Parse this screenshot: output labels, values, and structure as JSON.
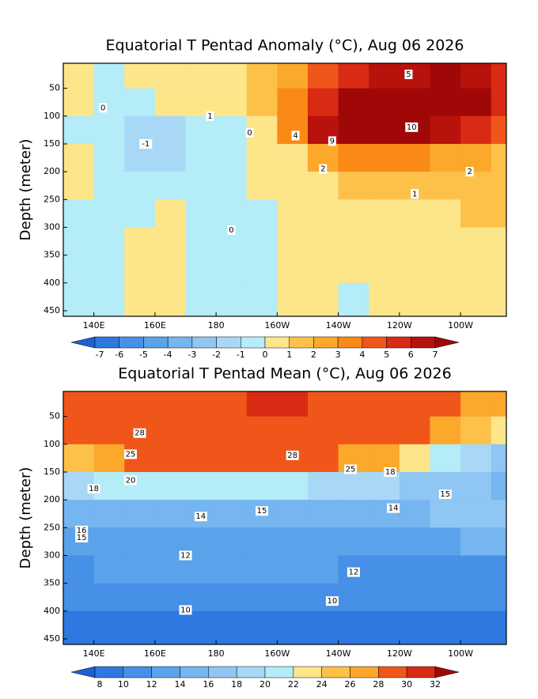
{
  "chart_data": [
    {
      "type": "heatmap",
      "title": "Equatorial T Pentad Anomaly (°C), Aug 06 2026",
      "ylabel": "Depth (meter)",
      "xlim": [
        130,
        275
      ],
      "ylim": [
        5,
        460
      ],
      "xticks": [
        {
          "value": 140,
          "label": "140E"
        },
        {
          "value": 160,
          "label": "160E"
        },
        {
          "value": 180,
          "label": "180"
        },
        {
          "value": 200,
          "label": "160W"
        },
        {
          "value": 220,
          "label": "140W"
        },
        {
          "value": 240,
          "label": "120W"
        },
        {
          "value": 260,
          "label": "100W"
        }
      ],
      "yticks": [
        50,
        100,
        150,
        200,
        250,
        300,
        350,
        400,
        450
      ],
      "x_edges": [
        130,
        140,
        150,
        160,
        170,
        180,
        190,
        200,
        210,
        220,
        230,
        240,
        250,
        260,
        270,
        275
      ],
      "y_edges": [
        5,
        50,
        100,
        150,
        200,
        250,
        300,
        350,
        400,
        450,
        460
      ],
      "z": [
        [
          0.5,
          -0.5,
          0.5,
          0.5,
          0.5,
          0.8,
          1.5,
          2.5,
          4,
          5,
          6,
          6.5,
          7,
          6.5,
          5
        ],
        [
          0.5,
          -0.5,
          -0.5,
          0.5,
          0.5,
          0.8,
          1.5,
          3,
          5,
          7,
          7.5,
          8,
          8,
          7,
          5
        ],
        [
          -0.5,
          -0.5,
          -1.5,
          -1.2,
          -0.5,
          -0.5,
          0.5,
          3,
          6,
          8,
          8,
          7,
          6,
          5,
          4
        ],
        [
          0.5,
          -0.5,
          -1.5,
          -1.5,
          -0.5,
          -0.5,
          0.5,
          0.8,
          2,
          3,
          3,
          3,
          2.5,
          2,
          1.5
        ],
        [
          0.5,
          -0.5,
          -0.5,
          -0.5,
          -0.5,
          -0.5,
          0.5,
          0.5,
          0.8,
          1,
          1,
          1.2,
          1,
          1.5,
          1.5
        ],
        [
          -0.5,
          -0.5,
          -0.5,
          0.5,
          -0.5,
          -0.5,
          -0.5,
          0.5,
          0.5,
          0.5,
          0.5,
          0.8,
          0.8,
          1,
          1.2
        ],
        [
          -0.5,
          -0.5,
          0.5,
          0.5,
          -0.5,
          -0.5,
          -0.5,
          0.5,
          0.5,
          0.5,
          0.5,
          0.5,
          0.5,
          0.5,
          0.8
        ],
        [
          -0.5,
          -0.5,
          0.5,
          0.5,
          -0.5,
          -0.5,
          -0.5,
          0.5,
          0.5,
          0.5,
          0.5,
          0.5,
          0.5,
          0.5,
          0.5
        ],
        [
          -0.5,
          -0.5,
          0.5,
          0.5,
          -0.5,
          -0.5,
          -0.5,
          0.5,
          0.5,
          -0.5,
          0.5,
          0.5,
          0.5,
          0.5,
          0.5
        ],
        [
          -0.5,
          -0.5,
          0.5,
          0.5,
          -0.5,
          -0.5,
          -0.5,
          0.5,
          0.5,
          -0.5,
          0.5,
          0.5,
          0.5,
          0.5,
          0.5
        ]
      ],
      "colorbar": {
        "levels": [
          -7,
          -6,
          -5,
          -4,
          -3,
          -2,
          -1,
          0,
          1,
          2,
          3,
          4,
          5,
          6,
          7
        ],
        "colors": [
          "#1d5fd6",
          "#2e78e0",
          "#4690e8",
          "#5aa2ea",
          "#75b5f0",
          "#8fc6f3",
          "#a9d8f6",
          "#b4ecf7",
          "#fde58a",
          "#fdc14a",
          "#fba82b",
          "#f98a16",
          "#f0561a",
          "#d92a13",
          "#b8120c",
          "#a00808"
        ]
      },
      "annotations": [
        {
          "x": 143,
          "y": 85,
          "text": "0"
        },
        {
          "x": 157,
          "y": 150,
          "text": "-1"
        },
        {
          "x": 178,
          "y": 100,
          "text": "1"
        },
        {
          "x": 191,
          "y": 130,
          "text": "0"
        },
        {
          "x": 185,
          "y": 305,
          "text": "0"
        },
        {
          "x": 206,
          "y": 135,
          "text": "4"
        },
        {
          "x": 218,
          "y": 145,
          "text": "9"
        },
        {
          "x": 244,
          "y": 120,
          "text": "10"
        },
        {
          "x": 243,
          "y": 25,
          "text": "5"
        },
        {
          "x": 263,
          "y": 200,
          "text": "2"
        },
        {
          "x": 245,
          "y": 240,
          "text": "1"
        },
        {
          "x": 215,
          "y": 195,
          "text": "2"
        }
      ]
    },
    {
      "type": "heatmap",
      "title": "Equatorial T Pentad Mean (°C), Aug 06 2026",
      "ylabel": "Depth (meter)",
      "xlim": [
        130,
        275
      ],
      "ylim": [
        5,
        460
      ],
      "xticks": [
        {
          "value": 140,
          "label": "140E"
        },
        {
          "value": 160,
          "label": "160E"
        },
        {
          "value": 180,
          "label": "180"
        },
        {
          "value": 200,
          "label": "160W"
        },
        {
          "value": 220,
          "label": "140W"
        },
        {
          "value": 240,
          "label": "120W"
        },
        {
          "value": 260,
          "label": "100W"
        }
      ],
      "yticks": [
        50,
        100,
        150,
        200,
        250,
        300,
        350,
        400,
        450
      ],
      "x_edges": [
        130,
        140,
        150,
        160,
        170,
        180,
        190,
        200,
        210,
        220,
        230,
        240,
        250,
        260,
        270,
        275
      ],
      "y_edges": [
        5,
        50,
        100,
        150,
        200,
        250,
        300,
        350,
        400,
        450,
        460
      ],
      "z": [
        [
          29,
          29,
          29,
          29,
          29,
          29,
          30.5,
          30.5,
          29,
          29,
          29,
          29,
          28.5,
          27,
          26
        ],
        [
          29,
          29,
          29,
          29,
          29,
          29,
          29,
          29,
          29,
          29,
          29,
          28.5,
          27,
          25,
          22
        ],
        [
          25,
          27,
          28,
          28,
          28,
          28,
          28,
          28,
          28,
          27,
          26,
          23,
          20,
          18,
          17
        ],
        [
          18,
          20,
          21,
          21,
          21,
          21,
          20,
          20,
          19,
          18,
          18,
          17,
          16.5,
          16,
          15
        ],
        [
          15.5,
          15,
          14.5,
          14.5,
          14.5,
          14.5,
          14.5,
          14.5,
          14.5,
          14.5,
          15,
          15.5,
          16,
          16.5,
          16.5
        ],
        [
          13,
          13,
          13,
          13,
          13,
          13,
          13,
          13,
          13,
          13,
          13,
          13,
          13.5,
          14,
          15
        ],
        [
          11.5,
          12,
          12,
          12.5,
          12.5,
          12,
          12,
          12,
          12,
          11.5,
          11.5,
          11.5,
          11,
          11,
          11
        ],
        [
          10.5,
          10.5,
          11,
          11,
          11,
          10.5,
          10.5,
          10.5,
          10.5,
          10.5,
          10.5,
          10,
          10,
          10,
          10
        ],
        [
          9.5,
          9.5,
          9.5,
          9.5,
          9.5,
          9.5,
          9.5,
          9.5,
          9.5,
          9.5,
          9.5,
          9.5,
          9.5,
          9.5,
          9.5
        ],
        [
          9,
          9,
          9,
          9,
          9,
          9,
          9,
          9,
          9,
          9,
          9,
          9,
          9,
          9,
          9
        ]
      ],
      "colorbar": {
        "levels": [
          8,
          10,
          12,
          14,
          16,
          18,
          20,
          22,
          24,
          26,
          28,
          30,
          32
        ],
        "colors": [
          "#1d5fd6",
          "#2e78e0",
          "#4690e8",
          "#5aa2ea",
          "#75b5f0",
          "#8fc6f3",
          "#a9d8f6",
          "#b4ecf7",
          "#fde58a",
          "#fdc14a",
          "#fba82b",
          "#f0561a",
          "#d92a13",
          "#a00808"
        ]
      },
      "annotations": [
        {
          "x": 155,
          "y": 80,
          "text": "28"
        },
        {
          "x": 152,
          "y": 118,
          "text": "25"
        },
        {
          "x": 152,
          "y": 165,
          "text": "20"
        },
        {
          "x": 140,
          "y": 180,
          "text": "18"
        },
        {
          "x": 136,
          "y": 255,
          "text": "16"
        },
        {
          "x": 136,
          "y": 268,
          "text": "15"
        },
        {
          "x": 175,
          "y": 230,
          "text": "14"
        },
        {
          "x": 170,
          "y": 300,
          "text": "12"
        },
        {
          "x": 170,
          "y": 398,
          "text": "10"
        },
        {
          "x": 205,
          "y": 120,
          "text": "28"
        },
        {
          "x": 224,
          "y": 145,
          "text": "25"
        },
        {
          "x": 195,
          "y": 220,
          "text": "15"
        },
        {
          "x": 237,
          "y": 150,
          "text": "18"
        },
        {
          "x": 255,
          "y": 190,
          "text": "15"
        },
        {
          "x": 238,
          "y": 215,
          "text": "14"
        },
        {
          "x": 225,
          "y": 330,
          "text": "12"
        },
        {
          "x": 218,
          "y": 382,
          "text": "10"
        }
      ]
    }
  ]
}
